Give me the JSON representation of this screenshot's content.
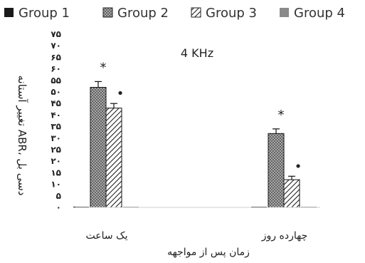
{
  "chart_data": {
    "type": "bar",
    "title": "4 KHz",
    "xlabel": "زمان پس از مواجهه",
    "ylabel": "تغییر آستانه ABR، دسی بل",
    "categories": [
      "یک ساعت",
      "چهارده روز"
    ],
    "series": [
      {
        "name": "Group 1",
        "values": [
          0,
          0
        ],
        "errors": [
          0,
          0
        ],
        "marks": [
          "",
          ""
        ]
      },
      {
        "name": "Group 2",
        "values": [
          52,
          32
        ],
        "errors": [
          2.5,
          2
        ],
        "marks": [
          "*",
          "*"
        ]
      },
      {
        "name": "Group 3",
        "values": [
          43,
          12
        ],
        "errors": [
          2,
          1.5
        ],
        "marks": [
          "•",
          "•"
        ]
      },
      {
        "name": "Group 4",
        "values": [
          0,
          0
        ],
        "errors": [
          0,
          0
        ],
        "marks": [
          "",
          ""
        ]
      }
    ],
    "ylim": [
      0,
      75
    ],
    "yticks": [
      "۰",
      "۵",
      "۱۰",
      "۱۵",
      "۲۰",
      "۲۵",
      "۳۰",
      "۳۵",
      "۴۰",
      "۴۵",
      "۵۰",
      "۵۵",
      "۶۰",
      "۶۵",
      "۷۰",
      "۷۵"
    ],
    "legend_position": "top",
    "grid": false,
    "colors": {
      "group1": "#1a1a1a",
      "group2": "#9a9a9a",
      "group3": "#ffffff",
      "group4": "#8a8a8a"
    }
  }
}
